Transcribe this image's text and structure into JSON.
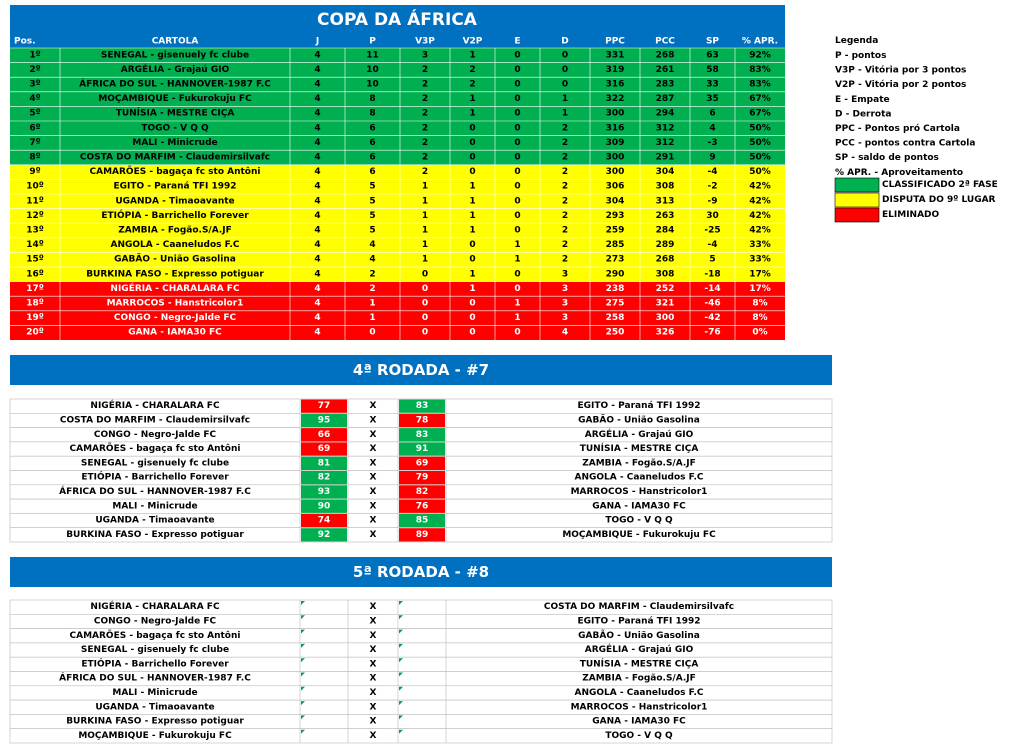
{
  "standings": {
    "title": "COPA DA ÁFRICA",
    "columns": [
      "Pos.",
      "CARTOLA",
      "J",
      "P",
      "V3P",
      "V2P",
      "E",
      "D",
      "PPC",
      "PCC",
      "SP",
      "% APR."
    ],
    "rows": [
      {
        "color": "#00b050",
        "cells": [
          "1º",
          "SENEGAL - gisenuely fc clube",
          4,
          11,
          3,
          1,
          0,
          0,
          331,
          268,
          63,
          "92%"
        ]
      },
      {
        "color": "#00b050",
        "cells": [
          "2º",
          "ARGÉLIA - Grajaú GIO",
          4,
          10,
          2,
          2,
          0,
          0,
          319,
          261,
          58,
          "83%"
        ]
      },
      {
        "color": "#00b050",
        "cells": [
          "3º",
          "ÁFRICA DO SUL - HANNOVER-1987 F.C",
          4,
          10,
          2,
          2,
          0,
          0,
          316,
          283,
          33,
          "83%"
        ]
      },
      {
        "color": "#00b050",
        "cells": [
          "4º",
          "MOÇAMBIQUE - Fukurokuju FC",
          4,
          8,
          2,
          1,
          0,
          1,
          322,
          287,
          35,
          "67%"
        ]
      },
      {
        "color": "#00b050",
        "cells": [
          "5º",
          "TUNÍSIA - MESTRE CIÇA",
          4,
          8,
          2,
          1,
          0,
          1,
          300,
          294,
          6,
          "67%"
        ]
      },
      {
        "color": "#00b050",
        "cells": [
          "6º",
          "TOGO - V Q Q",
          4,
          6,
          2,
          0,
          0,
          2,
          316,
          312,
          4,
          "50%"
        ]
      },
      {
        "color": "#00b050",
        "cells": [
          "7º",
          "MALI - Minicrude",
          4,
          6,
          2,
          0,
          0,
          2,
          309,
          312,
          -3,
          "50%"
        ]
      },
      {
        "color": "#00b050",
        "cells": [
          "8º",
          "COSTA DO MARFIM - Claudemirsilvafc",
          4,
          6,
          2,
          0,
          0,
          2,
          300,
          291,
          9,
          "50%"
        ]
      },
      {
        "color": "#ffff00",
        "cells": [
          "9º",
          "CAMARÕES - bagaça fc sto Antôni",
          4,
          6,
          2,
          0,
          0,
          2,
          300,
          304,
          -4,
          "50%"
        ]
      },
      {
        "color": "#ffff00",
        "cells": [
          "10º",
          "EGITO - Paraná TFI 1992",
          4,
          5,
          1,
          1,
          0,
          2,
          306,
          308,
          -2,
          "42%"
        ]
      },
      {
        "color": "#ffff00",
        "cells": [
          "11º",
          "UGANDA - Timaoavante",
          4,
          5,
          1,
          1,
          0,
          2,
          304,
          313,
          -9,
          "42%"
        ]
      },
      {
        "color": "#ffff00",
        "cells": [
          "12º",
          "ETIÓPIA - Barrichello Forever",
          4,
          5,
          1,
          1,
          0,
          2,
          293,
          263,
          30,
          "42%"
        ]
      },
      {
        "color": "#ffff00",
        "cells": [
          "13º",
          "ZAMBIA - Fogão.S/A.JF",
          4,
          5,
          1,
          1,
          0,
          2,
          259,
          284,
          -25,
          "42%"
        ]
      },
      {
        "color": "#ffff00",
        "cells": [
          "14º",
          "ANGOLA - Caaneludos F.C",
          4,
          4,
          1,
          0,
          1,
          2,
          285,
          289,
          -4,
          "33%"
        ]
      },
      {
        "color": "#ffff00",
        "cells": [
          "15º",
          "GABÃO - União Gasolina",
          4,
          4,
          1,
          0,
          1,
          2,
          273,
          268,
          5,
          "33%"
        ]
      },
      {
        "color": "#ffff00",
        "cells": [
          "16º",
          "BURKINA FASO - Expresso potiguar",
          4,
          2,
          0,
          1,
          0,
          3,
          290,
          308,
          -18,
          "17%"
        ]
      },
      {
        "color": "#ff0000",
        "text_color": "#ffffff",
        "cells": [
          "17º",
          "NIGÉRIA - CHARALARA FC",
          4,
          2,
          0,
          1,
          0,
          3,
          238,
          252,
          -14,
          "17%"
        ]
      },
      {
        "color": "#ff0000",
        "text_color": "#ffffff",
        "cells": [
          "18º",
          "MARROCOS - Hanstricolor1",
          4,
          1,
          0,
          0,
          1,
          3,
          275,
          321,
          -46,
          "8%"
        ]
      },
      {
        "color": "#ff0000",
        "text_color": "#ffffff",
        "cells": [
          "19º",
          "CONGO - Negro-Jalde FC",
          4,
          1,
          0,
          0,
          1,
          3,
          258,
          300,
          -42,
          "8%"
        ]
      },
      {
        "color": "#ff0000",
        "text_color": "#ffffff",
        "cells": [
          "20º",
          "GANA - IAMA30 FC",
          4,
          0,
          0,
          0,
          0,
          4,
          250,
          326,
          -76,
          "0%"
        ]
      }
    ]
  },
  "legend": {
    "title": "Legenda",
    "items": [
      "P - pontos",
      "V3P - Vitória por 3 pontos",
      "V2P - Vitória por 2 pontos",
      "E - Empate",
      "D - Derrota",
      "PPC - Pontos pró Cartola",
      "PCC - pontos contra Cartola",
      "SP - saldo de pontos",
      "% APR. - Aproveitamento"
    ],
    "zones": [
      {
        "label": "CLASSIFICADO 2ª FASE",
        "color": "#00b050"
      },
      {
        "label": "DISPUTA DO 9º LUGAR",
        "color": "#ffff00"
      },
      {
        "label": "ELIMINADO",
        "color": "#ff0000"
      }
    ]
  },
  "versus": "X",
  "rounds": [
    {
      "title": "4ª RODADA - #7",
      "matches": [
        {
          "home": "NIGÉRIA - CHARALARA FC",
          "home_score": 77,
          "away_score": 83,
          "away": "EGITO - Paraná TFI 1992"
        },
        {
          "home": "COSTA DO MARFIM - Claudemirsilvafc",
          "home_score": 95,
          "away_score": 78,
          "away": "GABÃO - União Gasolina"
        },
        {
          "home": "CONGO - Negro-Jalde FC",
          "home_score": 66,
          "away_score": 83,
          "away": "ARGÉLIA - Grajaú GIO"
        },
        {
          "home": "CAMARÕES - bagaça fc sto Antôni",
          "home_score": 69,
          "away_score": 91,
          "away": "TUNÍSIA - MESTRE CIÇA"
        },
        {
          "home": "SENEGAL - gisenuely fc clube",
          "home_score": 81,
          "away_score": 69,
          "away": "ZAMBIA - Fogão.S/A.JF"
        },
        {
          "home": "ETIÓPIA - Barrichello Forever",
          "home_score": 82,
          "away_score": 79,
          "away": "ANGOLA - Caaneludos F.C"
        },
        {
          "home": "ÁFRICA DO SUL - HANNOVER-1987 F.C",
          "home_score": 93,
          "away_score": 82,
          "away": "MARROCOS - Hanstricolor1"
        },
        {
          "home": "MALI - Minicrude",
          "home_score": 90,
          "away_score": 76,
          "away": "GANA - IAMA30 FC"
        },
        {
          "home": "UGANDA - Timaoavante",
          "home_score": 74,
          "away_score": 85,
          "away": "TOGO - V Q Q"
        },
        {
          "home": "BURKINA FASO - Expresso potiguar",
          "home_score": 92,
          "away_score": 89,
          "away": "MOÇAMBIQUE - Fukurokuju FC"
        }
      ]
    },
    {
      "title": "5ª RODADA - #8",
      "matches": [
        {
          "home": "NIGÉRIA - CHARALARA FC",
          "away": "COSTA DO MARFIM - Claudemirsilvafc"
        },
        {
          "home": "CONGO - Negro-Jalde FC",
          "away": "EGITO - Paraná TFI 1992"
        },
        {
          "home": "CAMARÕES - bagaça fc sto Antôni",
          "away": "GABÃO - União Gasolina"
        },
        {
          "home": "SENEGAL - gisenuely fc clube",
          "away": "ARGÉLIA - Grajaú GIO"
        },
        {
          "home": "ETIÓPIA - Barrichello Forever",
          "away": "TUNÍSIA - MESTRE CIÇA"
        },
        {
          "home": "ÁFRICA DO SUL - HANNOVER-1987 F.C",
          "away": "ZAMBIA - Fogão.S/A.JF"
        },
        {
          "home": "MALI - Minicrude",
          "away": "ANGOLA - Caaneludos F.C"
        },
        {
          "home": "UGANDA - Timaoavante",
          "away": "MARROCOS - Hanstricolor1"
        },
        {
          "home": "BURKINA FASO - Expresso potiguar",
          "away": "GANA - IAMA30 FC"
        },
        {
          "home": "MOÇAMBIQUE - Fukurokuju FC",
          "away": "TOGO - V Q Q"
        }
      ]
    }
  ]
}
